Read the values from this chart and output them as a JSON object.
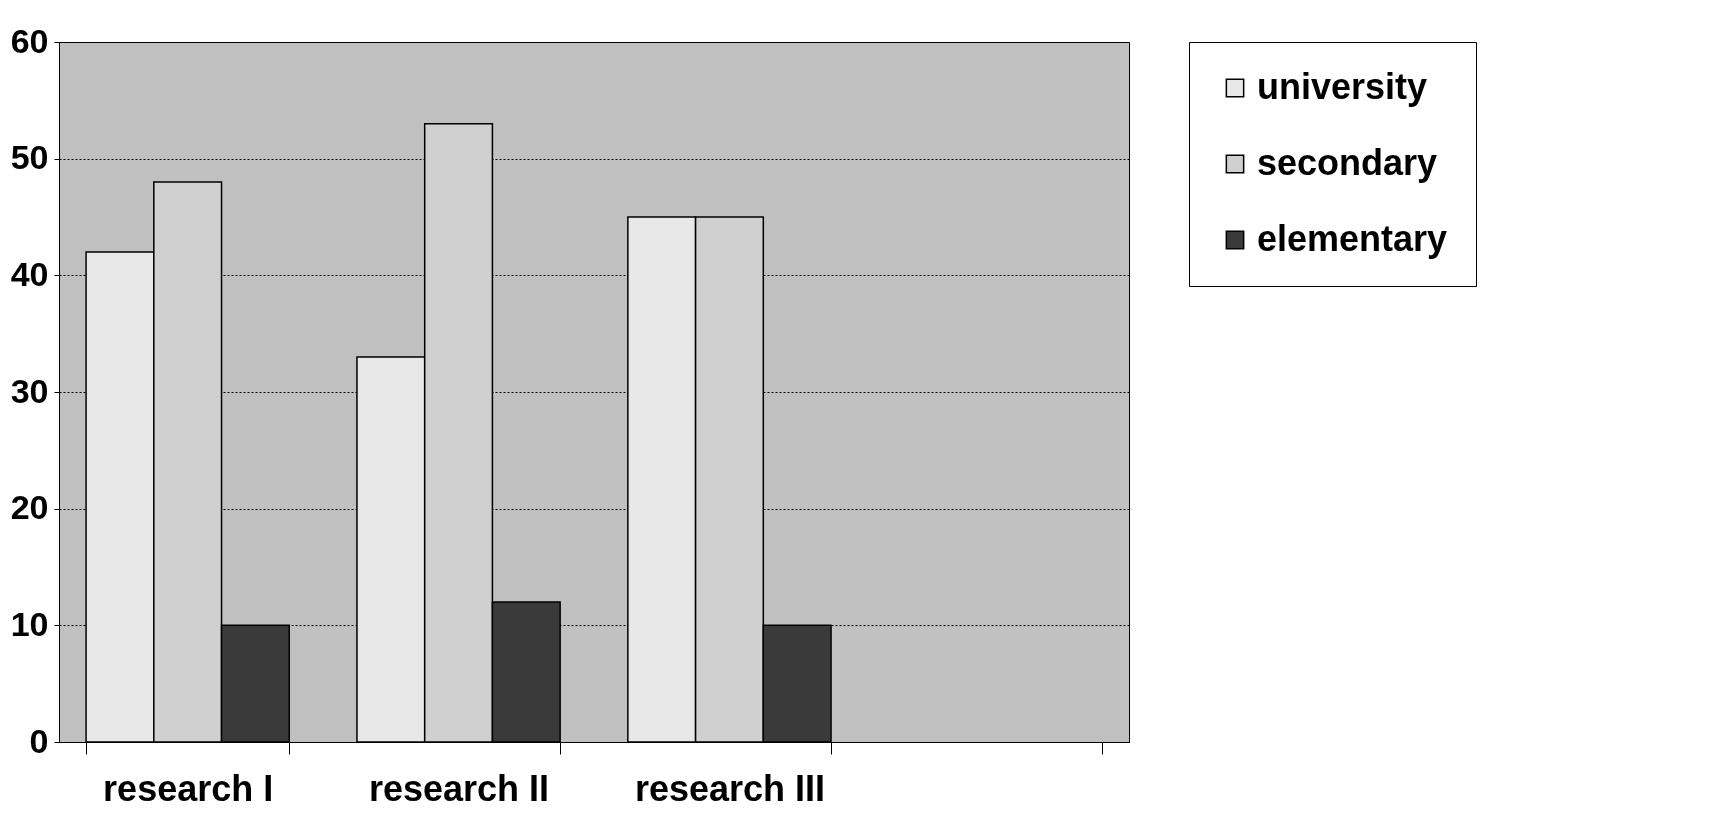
{
  "chart_data": {
    "type": "bar",
    "categories": [
      "research I",
      "research II",
      "research III",
      null
    ],
    "series": [
      {
        "name": "university",
        "color": "#e8e8e8",
        "values": [
          42,
          33,
          45,
          null
        ]
      },
      {
        "name": "secondary",
        "color": "#d0d0d0",
        "values": [
          48,
          53,
          45,
          null
        ]
      },
      {
        "name": "elementary",
        "color": "#3a3a3a",
        "values": [
          10,
          12,
          10,
          null
        ]
      }
    ],
    "ylim": [
      0,
      60
    ],
    "yticks": [
      0,
      10,
      20,
      30,
      40,
      50,
      60
    ],
    "grid": "y",
    "legend": "right"
  }
}
